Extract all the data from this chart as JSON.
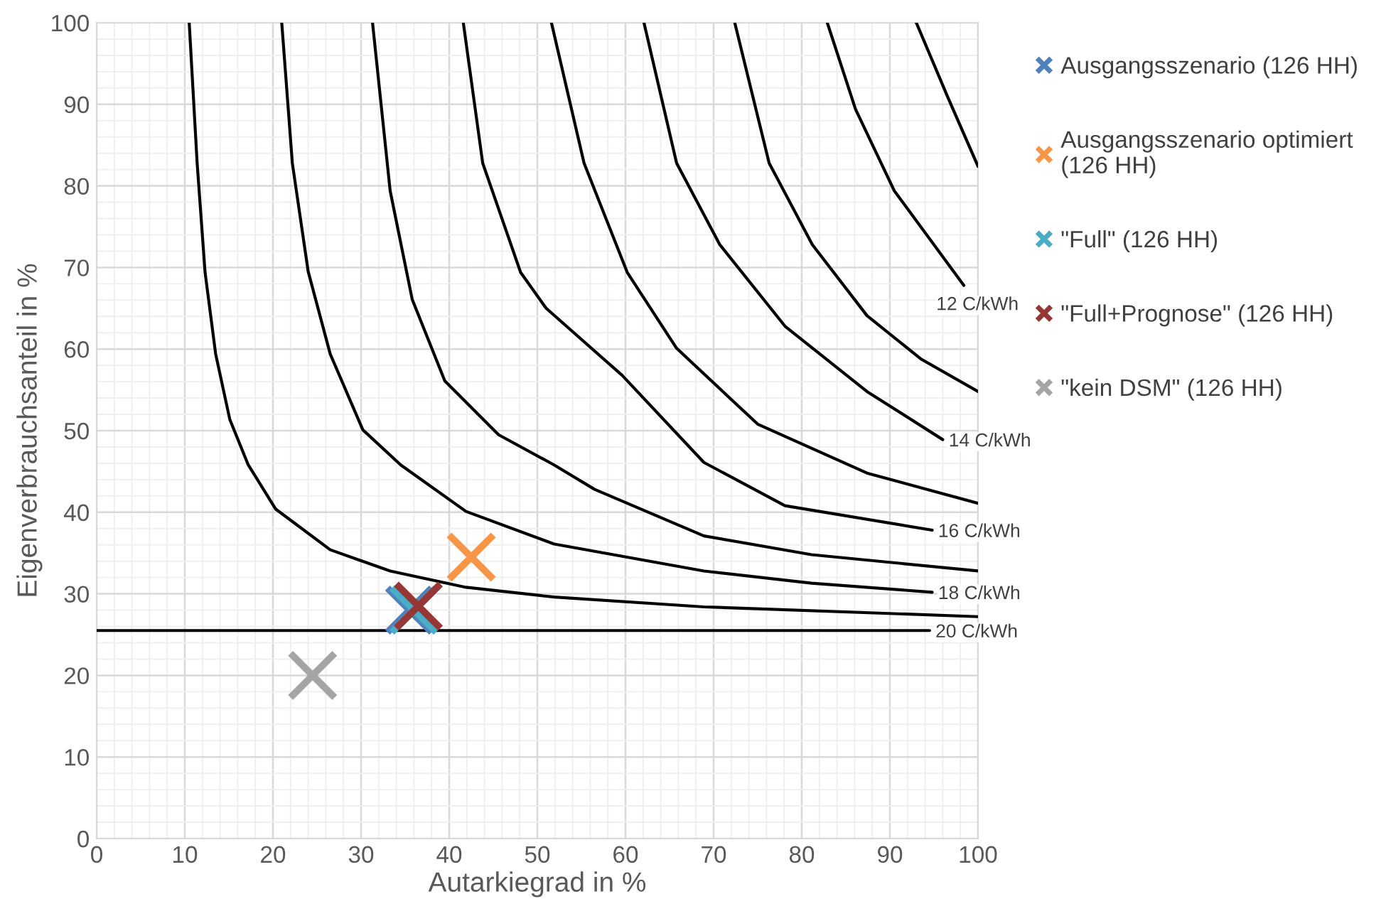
{
  "chart_data": {
    "type": "scatter",
    "xlabel": "Autarkiegrad in %",
    "ylabel": "Eigenverbrauchsanteil in %",
    "xlim": [
      0,
      100
    ],
    "ylim": [
      0,
      100
    ],
    "xticks": [
      0,
      10,
      20,
      30,
      40,
      50,
      60,
      70,
      80,
      90,
      100
    ],
    "yticks": [
      0,
      10,
      20,
      30,
      40,
      50,
      60,
      70,
      80,
      90,
      100
    ],
    "grid": true,
    "legend": "right",
    "series": [
      {
        "type": "line",
        "color": "#000000",
        "x": [
          0,
          94.5
        ],
        "values": [
          25.5,
          25.5
        ]
      },
      {
        "type": "line",
        "color": "#000000",
        "x": [
          10.5,
          11.4,
          12.3,
          13.5,
          15.1,
          17.2,
          20.3,
          26.5,
          33.3,
          41.9,
          51.9,
          68.9,
          100
        ],
        "values": [
          100,
          82.8,
          69.4,
          59.4,
          51.4,
          45.8,
          40.4,
          35.4,
          32.8,
          30.8,
          29.6,
          28.4,
          27.2
        ]
      },
      {
        "type": "line",
        "color": "#000000",
        "x": [
          21,
          22.2,
          24.0,
          26.5,
          30.2,
          34.5,
          41.9,
          51.9,
          68.9,
          81.1,
          94.8
        ],
        "values": [
          100,
          82.8,
          69.5,
          59.4,
          50.1,
          45.8,
          40.1,
          36.1,
          32.8,
          31.3,
          30.2
        ]
      },
      {
        "type": "line",
        "color": "#000000",
        "x": [
          31.3,
          33.3,
          35.8,
          39.5,
          45.6,
          51.9,
          56.5,
          68.9,
          81.1,
          100
        ],
        "values": [
          100,
          79.4,
          66.1,
          56.1,
          49.5,
          45.8,
          42.8,
          37.1,
          34.8,
          32.8
        ]
      },
      {
        "type": "line",
        "color": "#000000",
        "x": [
          41.6,
          43.8,
          48.1,
          51.0,
          59.6,
          68.9,
          78.1,
          94.8
        ],
        "values": [
          100,
          82.8,
          69.4,
          65.0,
          56.8,
          46.1,
          40.8,
          37.8
        ]
      },
      {
        "type": "line",
        "color": "#000000",
        "x": [
          51.6,
          55.3,
          60.2,
          65.8,
          75,
          87.4,
          100
        ],
        "values": [
          100,
          82.8,
          69.4,
          60.1,
          50.8,
          44.8,
          41.1
        ]
      },
      {
        "type": "line",
        "color": "#000000",
        "x": [
          62.1,
          65.8,
          70.7,
          78.1,
          87.4,
          96
        ],
        "values": [
          100,
          82.8,
          72.8,
          62.8,
          54.8,
          48.9
        ]
      },
      {
        "type": "line",
        "color": "#000000",
        "x": [
          72.4,
          76.3,
          81.2,
          87.4,
          93.5,
          100
        ],
        "values": [
          100,
          82.8,
          72.8,
          64.1,
          58.8,
          54.8
        ]
      },
      {
        "type": "line",
        "color": "#000000",
        "x": [
          82.9,
          86.1,
          90.5,
          98.4
        ],
        "values": [
          100,
          89.4,
          79.4,
          67.8
        ]
      },
      {
        "type": "line",
        "color": "#000000",
        "x": [
          93,
          96.6,
          100
        ],
        "values": [
          100,
          90.8,
          82.4
        ]
      },
      {
        "name": "Ausgangsszenario (126 HH)",
        "marker": "cross",
        "color": "#4f81bd",
        "x": [
          35.5
        ],
        "values": [
          28
        ]
      },
      {
        "name": "Ausgangsszenario optimiert (126 HH)",
        "marker": "cross",
        "color": "#f79646",
        "x": [
          42.5
        ],
        "values": [
          34.5
        ]
      },
      {
        "name": "\"Full\" (126 HH)",
        "marker": "cross",
        "color": "#4bacc6",
        "x": [
          36
        ],
        "values": [
          28
        ]
      },
      {
        "name": "\"Full+Prognose\" (126 HH)",
        "marker": "cross",
        "color": "#953735",
        "x": [
          36.5
        ],
        "values": [
          28.5
        ]
      },
      {
        "name": "\"kein DSM\" (126 HH)",
        "marker": "cross",
        "color": "#a5a5a5",
        "x": [
          24.5
        ],
        "values": [
          20
        ]
      }
    ],
    "annotations": [
      {
        "text": "12 C/kWh",
        "x": 98.4,
        "y": 67.8
      },
      {
        "text": "14 C/kWh",
        "x": 96,
        "y": 48.9
      },
      {
        "text": "16 C/kWh",
        "x": 94.8,
        "y": 37.8
      },
      {
        "text": "18 C/kWh",
        "x": 94.8,
        "y": 30.2
      },
      {
        "text": "20 C/kWh",
        "x": 94.5,
        "y": 25.5
      }
    ]
  }
}
